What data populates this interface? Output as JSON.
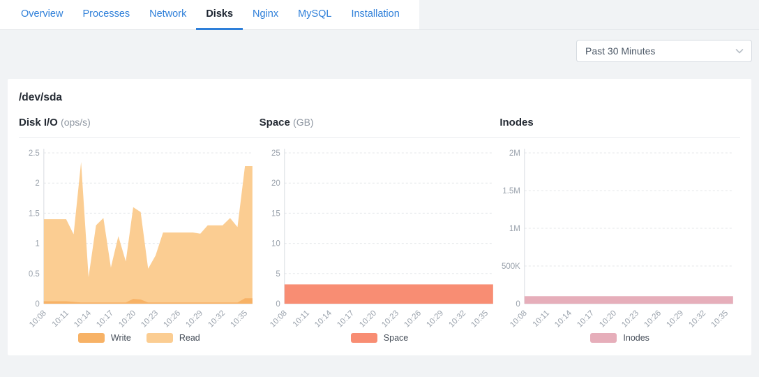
{
  "tabs": [
    {
      "label": "Overview",
      "active": false
    },
    {
      "label": "Processes",
      "active": false
    },
    {
      "label": "Network",
      "active": false
    },
    {
      "label": "Disks",
      "active": true
    },
    {
      "label": "Nginx",
      "active": false
    },
    {
      "label": "MySQL",
      "active": false
    },
    {
      "label": "Installation",
      "active": false
    }
  ],
  "toolbar": {
    "time_range": "Past 30 Minutes"
  },
  "icons": {
    "time_range_chevron": "chevron-down"
  },
  "panel": {
    "device": "/dev/sda"
  },
  "colors": {
    "accent": "#2e7fd9",
    "write": "#f7b266",
    "read": "#fbcd92",
    "space": "#f88d73",
    "inodes": "#e6aeba",
    "axis_text": "#9aa2ac",
    "grid": "#e4e7ea",
    "axis_line": "#d8dce1"
  },
  "chart_data": [
    {
      "type": "area",
      "title": "Disk I/O",
      "unit": "(ops/s)",
      "ylabel": "ops/s",
      "y_max": 2.5,
      "y_ticks": [
        "0",
        "0.5",
        "1",
        "1.5",
        "2",
        "2.5"
      ],
      "grid": "dashed",
      "legend_position": "bottom",
      "x_tick_every": 3,
      "x": [
        "10:08",
        "10:09",
        "10:10",
        "10:11",
        "10:12",
        "10:13",
        "10:14",
        "10:15",
        "10:16",
        "10:17",
        "10:18",
        "10:19",
        "10:20",
        "10:21",
        "10:22",
        "10:23",
        "10:24",
        "10:25",
        "10:26",
        "10:27",
        "10:28",
        "10:29",
        "10:30",
        "10:31",
        "10:32",
        "10:33",
        "10:34",
        "10:35",
        "10:36"
      ],
      "series": [
        {
          "name": "Write",
          "color": "#f7b266",
          "values": [
            0.04,
            0.04,
            0.04,
            0.04,
            0.03,
            0.02,
            0.02,
            0.02,
            0.02,
            0.02,
            0.02,
            0.02,
            0.08,
            0.07,
            0.02,
            0.02,
            0.02,
            0.02,
            0.02,
            0.02,
            0.02,
            0.02,
            0.02,
            0.02,
            0.02,
            0.02,
            0.02,
            0.09,
            0.09
          ]
        },
        {
          "name": "Read",
          "color": "#fbcd92",
          "values": [
            1.4,
            1.4,
            1.4,
            1.4,
            1.15,
            2.35,
            0.44,
            1.3,
            1.42,
            0.6,
            1.12,
            0.7,
            1.6,
            1.52,
            0.58,
            0.8,
            1.18,
            1.18,
            1.18,
            1.18,
            1.18,
            1.16,
            1.3,
            1.3,
            1.3,
            1.42,
            1.27,
            2.28,
            2.28
          ]
        }
      ]
    },
    {
      "type": "area",
      "title": "Space",
      "unit": "(GB)",
      "ylabel": "GB",
      "y_max": 25,
      "y_ticks": [
        "0",
        "5",
        "10",
        "15",
        "20",
        "25"
      ],
      "grid": "dashed",
      "legend_position": "bottom",
      "x_tick_every": 3,
      "x": [
        "10:08",
        "10:09",
        "10:10",
        "10:11",
        "10:12",
        "10:13",
        "10:14",
        "10:15",
        "10:16",
        "10:17",
        "10:18",
        "10:19",
        "10:20",
        "10:21",
        "10:22",
        "10:23",
        "10:24",
        "10:25",
        "10:26",
        "10:27",
        "10:28",
        "10:29",
        "10:30",
        "10:31",
        "10:32",
        "10:33",
        "10:34",
        "10:35",
        "10:36"
      ],
      "series": [
        {
          "name": "Space",
          "color": "#f88d73",
          "values": [
            3.2,
            3.2,
            3.2,
            3.2,
            3.2,
            3.2,
            3.2,
            3.2,
            3.2,
            3.2,
            3.2,
            3.2,
            3.2,
            3.2,
            3.2,
            3.2,
            3.2,
            3.2,
            3.2,
            3.2,
            3.2,
            3.2,
            3.2,
            3.2,
            3.2,
            3.2,
            3.2,
            3.2,
            3.2
          ]
        }
      ]
    },
    {
      "type": "area",
      "title": "Inodes",
      "unit": "",
      "ylabel": "inodes",
      "y_max": 2000000,
      "y_ticks": [
        "0",
        "500K",
        "1M",
        "1.5M",
        "2M"
      ],
      "grid": "dashed",
      "legend_position": "bottom",
      "x_tick_every": 3,
      "x": [
        "10:08",
        "10:09",
        "10:10",
        "10:11",
        "10:12",
        "10:13",
        "10:14",
        "10:15",
        "10:16",
        "10:17",
        "10:18",
        "10:19",
        "10:20",
        "10:21",
        "10:22",
        "10:23",
        "10:24",
        "10:25",
        "10:26",
        "10:27",
        "10:28",
        "10:29",
        "10:30",
        "10:31",
        "10:32",
        "10:33",
        "10:34",
        "10:35",
        "10:36"
      ],
      "series": [
        {
          "name": "Inodes",
          "color": "#e6aeba",
          "values": [
            100000,
            100000,
            100000,
            100000,
            100000,
            100000,
            100000,
            100000,
            100000,
            100000,
            100000,
            100000,
            100000,
            100000,
            100000,
            100000,
            100000,
            100000,
            100000,
            100000,
            100000,
            100000,
            100000,
            100000,
            100000,
            100000,
            100000,
            100000,
            100000
          ]
        }
      ]
    }
  ]
}
